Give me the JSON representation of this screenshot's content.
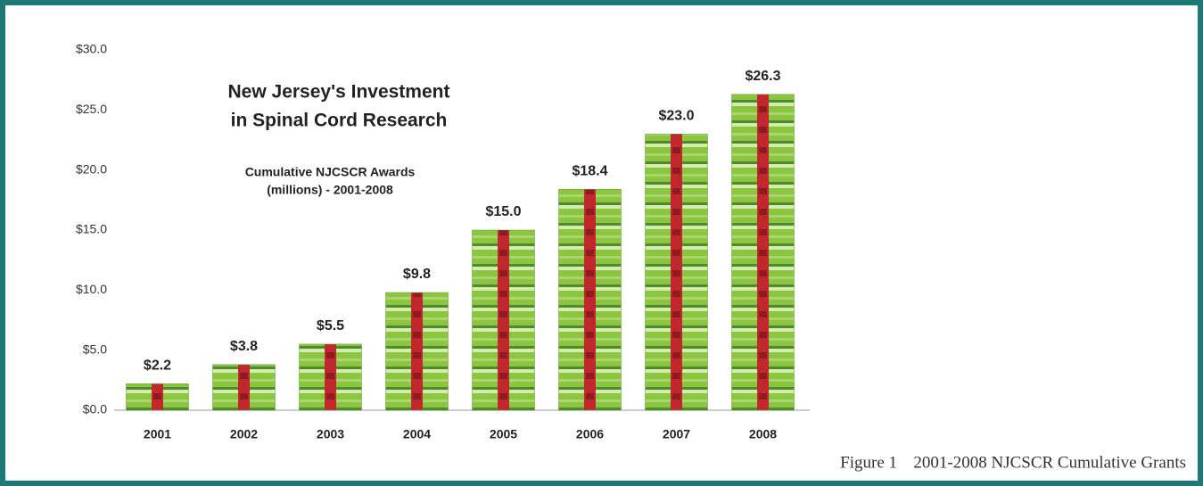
{
  "chart_data": {
    "type": "bar",
    "title": [
      "New Jersey's Investment",
      "in Spinal Cord Research"
    ],
    "subtitle": [
      "Cumulative NJCSCR Awards",
      "(millions) - 2001-2008"
    ],
    "caption": [
      "Figure 1",
      "2001-2008 NJCSCR Cumulative Grants"
    ],
    "categories": [
      "2001",
      "2002",
      "2003",
      "2004",
      "2005",
      "2006",
      "2007",
      "2008"
    ],
    "values": [
      2.2,
      3.8,
      5.5,
      9.8,
      15.0,
      18.4,
      23.0,
      26.3
    ],
    "value_labels": [
      "$2.2",
      "$3.8",
      "$5.5",
      "$9.8",
      "$15.0",
      "$18.4",
      "$23.0",
      "$26.3"
    ],
    "color": "#8cc63f",
    "ylim": [
      0,
      30
    ],
    "yticks": [
      {
        "value": 0,
        "label": "$0.0"
      },
      {
        "value": 5,
        "label": "$5.0"
      },
      {
        "value": 10,
        "label": "$10.0"
      },
      {
        "value": 15,
        "label": "$15.0"
      },
      {
        "value": 20,
        "label": "$20.0"
      },
      {
        "value": 25,
        "label": "$25.0"
      },
      {
        "value": 30,
        "label": "$30.0"
      }
    ],
    "grid": false
  }
}
